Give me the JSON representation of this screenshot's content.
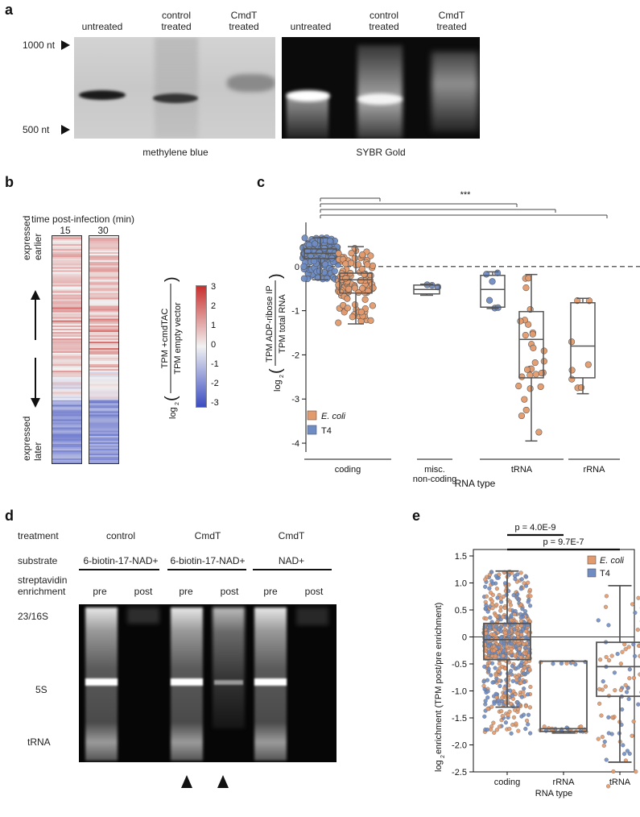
{
  "panels": {
    "a": {
      "letter": "a",
      "lanes_left": [
        {
          "label": "untreated"
        },
        {
          "label": "control\ntreated"
        },
        {
          "label": "CmdT\ntreated"
        }
      ],
      "lanes_right": [
        {
          "label": "untreated"
        },
        {
          "label": "control\ntreated"
        },
        {
          "label": "CmdT\ntreated"
        }
      ],
      "marker_top": "1000 nt",
      "marker_bottom": "500 nt",
      "stain_left": "methylene blue",
      "stain_right": "SYBR Gold"
    },
    "b": {
      "letter": "b",
      "header": "time post-infection (min)",
      "columns": [
        "15",
        "30"
      ],
      "top_label_1": "expressed",
      "top_label_2": "earlier",
      "bottom_label_1": "expressed",
      "bottom_label_2": "later",
      "colorbar_label_num": "TPM +cmdTAC",
      "colorbar_label_den": "TPM empty vector",
      "colorbar_prefix": "log",
      "colorbar_sub": "2",
      "colorbar_ticks": [
        "3",
        "2",
        "1",
        "0",
        "-1",
        "-2",
        "-3"
      ],
      "colors": {
        "high": "#c8302e",
        "mid": "#f2f2f2",
        "low": "#3b4cc0"
      }
    },
    "c": {
      "letter": "c",
      "significance": "***",
      "legend": [
        {
          "name": "E. coli",
          "color": "#e39a6c"
        },
        {
          "name": "T4",
          "color": "#6f8dc4"
        }
      ],
      "ylabel_num": "TPM ADP-ribose IP",
      "ylabel_den": "TPM total RNA",
      "ylabel_prefix": "log",
      "ylabel_sub": "2",
      "xlabel": "RNA type",
      "groups": [
        "coding",
        "misc.\nnon-coding",
        "tRNA",
        "rRNA"
      ]
    },
    "d": {
      "letter": "d",
      "row_treatment": "treatment",
      "row_substrate": "substrate",
      "row_enrichment_1": "streptavidin",
      "row_enrichment_2": "enrichment",
      "treatments": [
        "control",
        "CmdT",
        "CmdT"
      ],
      "substrates": [
        "6-biotin-17-NAD+",
        "6-biotin-17-NAD+",
        "NAD+"
      ],
      "enrichment": [
        "pre",
        "post",
        "pre",
        "post",
        "pre",
        "post"
      ],
      "markers": [
        "23/16S",
        "5S",
        "tRNA"
      ]
    },
    "e": {
      "letter": "e",
      "pvalues": [
        "p = 4.0E-9",
        "p = 9.7E-7"
      ],
      "legend": [
        {
          "name": "E. coli",
          "color": "#e39a6c"
        },
        {
          "name": "T4",
          "color": "#6f8dc4"
        }
      ],
      "ylabel_prefix": "log",
      "ylabel_sub": "2",
      "ylabel_rest": " enrichment (TPM post/pre enrichment)",
      "xlabel": "RNA type"
    }
  },
  "chart_data": [
    {
      "panel": "c",
      "type": "box",
      "categories": [
        "coding",
        "coding",
        "misc. non-coding",
        "tRNA",
        "tRNA",
        "rRNA"
      ],
      "series_of_box": [
        "T4",
        "E. coli",
        "T4",
        "T4",
        "E. coli",
        "E. coli"
      ],
      "boxes": [
        {
          "q1": 0.18,
          "median": 0.3,
          "q3": 0.4,
          "wlow": -0.3,
          "whigh": 0.65
        },
        {
          "q1": -0.6,
          "median": -0.3,
          "q3": -0.15,
          "wlow": -1.3,
          "whigh": 0.45
        },
        {
          "q1": -0.62,
          "median": -0.52,
          "q3": -0.42,
          "wlow": -0.65,
          "whigh": -0.4
        },
        {
          "q1": -0.92,
          "median": -0.52,
          "q3": -0.2,
          "wlow": -0.95,
          "whigh": -0.12
        },
        {
          "q1": -2.52,
          "median": -1.65,
          "q3": -1.02,
          "wlow": -3.95,
          "whigh": -0.18
        },
        {
          "q1": -2.52,
          "median": -1.8,
          "q3": -0.82,
          "wlow": -2.88,
          "whigh": -0.72
        }
      ],
      "ticks": [
        0,
        -1,
        -2,
        -3,
        -4
      ],
      "ylim": [
        -4.2,
        1.0
      ],
      "reference_line": 0
    },
    {
      "panel": "e",
      "type": "box",
      "categories": [
        "coding",
        "rRNA",
        "tRNA"
      ],
      "boxes": [
        {
          "q1": -0.42,
          "median": -0.05,
          "q3": 0.25,
          "wlow": -1.3,
          "whigh": 1.22
        },
        {
          "q1": -1.75,
          "median": -1.7,
          "q3": -0.45,
          "wlow": -1.78,
          "whigh": -0.45
        },
        {
          "q1": -1.1,
          "median": -0.55,
          "q3": -0.1,
          "wlow": -2.32,
          "whigh": 0.95
        }
      ],
      "ticks": [
        1.5,
        1.0,
        0.5,
        0,
        -0.5,
        -1.0,
        -1.5,
        -2.0,
        -2.5
      ],
      "tick_labels": [
        "1.5",
        "1.0",
        "0.5",
        "0",
        "-0.5",
        "-1.0",
        "-1.5",
        "-2.0",
        "-2.5"
      ],
      "ylim": [
        -2.5,
        1.5
      ],
      "reference_line": 0
    }
  ]
}
